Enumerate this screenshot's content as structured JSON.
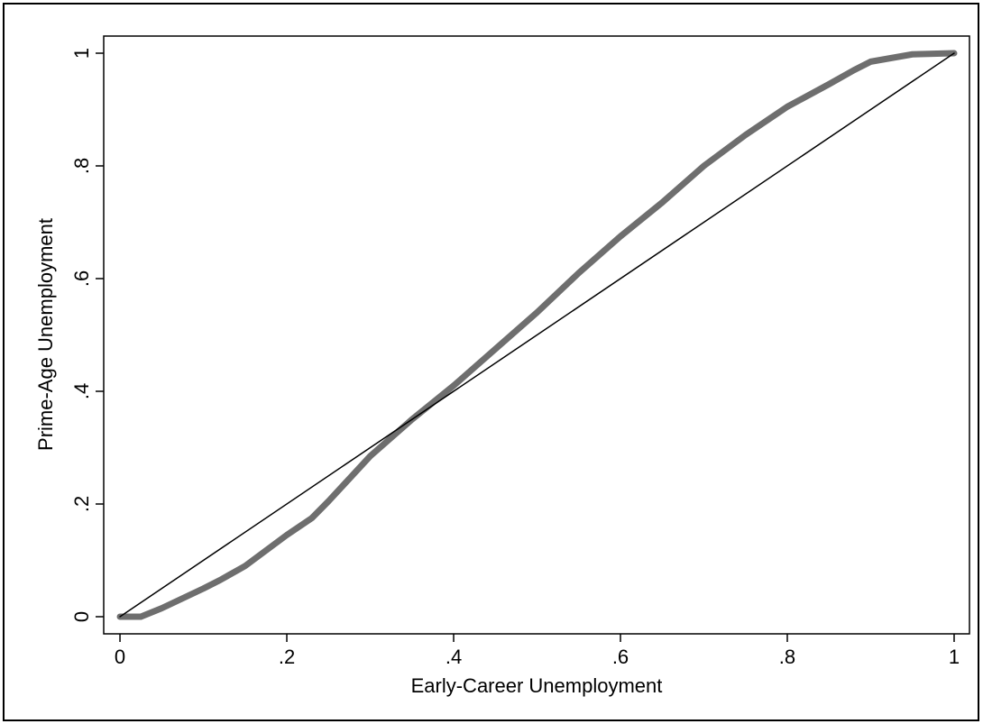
{
  "chart_data": {
    "type": "line",
    "x_label": "Early-Career Unemployment",
    "y_label": "Prime-Age Unemployment",
    "xlim": [
      -0.0195,
      1.0184
    ],
    "ylim": [
      -0.0304,
      1.0304
    ],
    "xticks": [
      0,
      {
        "value": 0.2,
        "label": ".2"
      },
      {
        "value": 0.4,
        "label": ".4"
      },
      {
        "value": 0.6,
        "label": ".6"
      },
      {
        "value": 0.8,
        "label": ".8"
      },
      1
    ],
    "yticks": [
      0,
      {
        "value": 0.2,
        "label": ".2"
      },
      {
        "value": 0.4,
        "label": ".4"
      },
      {
        "value": 0.6,
        "label": ".6"
      },
      {
        "value": 0.8,
        "label": ".8"
      },
      1
    ],
    "series": [
      {
        "color": "#6e6e6e",
        "width": 7,
        "x": [
          0,
          0.025,
          0.05,
          0.1,
          0.12,
          0.15,
          0.2,
          0.23,
          0.25,
          0.3,
          0.35,
          0.4,
          0.45,
          0.5,
          0.55,
          0.6,
          0.65,
          0.7,
          0.75,
          0.8,
          0.85,
          0.88,
          0.9,
          0.95,
          1
        ],
        "values": [
          0,
          0,
          0.015,
          0.05,
          0.065,
          0.09,
          0.145,
          0.175,
          0.205,
          0.285,
          0.35,
          0.41,
          0.475,
          0.54,
          0.61,
          0.675,
          0.735,
          0.8,
          0.855,
          0.905,
          0.945,
          0.97,
          0.985,
          0.998,
          1
        ]
      },
      {
        "color": "#000000",
        "width": 1.5,
        "x": [
          0,
          1
        ],
        "values": [
          0,
          1
        ]
      }
    ]
  }
}
